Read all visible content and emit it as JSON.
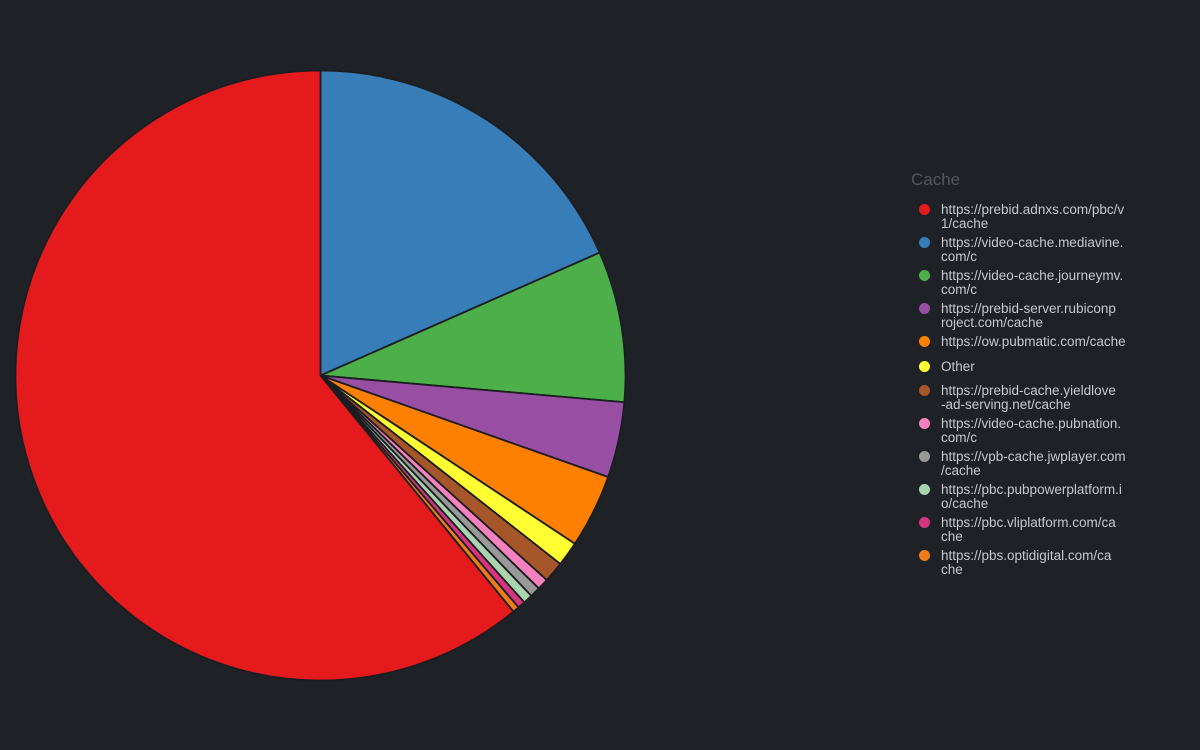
{
  "page": {
    "background_color": "#1e2126"
  },
  "chart_data": {
    "type": "pie",
    "title": "",
    "legend_title": "Cache",
    "legend_position": "right",
    "value_labels_shown_on_slices": false,
    "values_unit": "percent (estimated from slice angles; no numbers rendered on chart)",
    "arrangement": "largest slice starts at 12 o'clock filling counterclockwise; remaining slices run clockwise from 12 o'clock in legend order",
    "slice_border_color": "#1b1d21",
    "series": [
      {
        "label": "https://prebid.adnxs.com/pbc/v1/cache",
        "display": "https://prebid.adnxs.com/pbc/v\n1/cache",
        "value_pct": 60.9,
        "color": "#e41a1c"
      },
      {
        "label": "https://video-cache.mediavine.com/c",
        "display": "https://video-cache.mediavine.\ncom/c",
        "value_pct": 18.4,
        "color": "#377eb8"
      },
      {
        "label": "https://video-cache.journeymv.com/c",
        "display": "https://video-cache.journeymv.\ncom/c",
        "value_pct": 8.0,
        "color": "#4daf4a"
      },
      {
        "label": "https://prebid-server.rubiconproject.com/cache",
        "display": "https://prebid-server.rubiconp\nroject.com/cache",
        "value_pct": 4.0,
        "color": "#984ea3"
      },
      {
        "label": "https://ow.pubmatic.com/cache",
        "display": "https://ow.pubmatic.com/cache",
        "value_pct": 3.9,
        "color": "#ff7f00"
      },
      {
        "label": "Other",
        "display": "Other",
        "value_pct": 1.3,
        "color": "#ffff33"
      },
      {
        "label": "https://prebid-cache.yieldlove-ad-serving.net/cache",
        "display": "https://prebid-cache.yieldlove\n-ad-serving.net/cache",
        "value_pct": 1.1,
        "color": "#a65628"
      },
      {
        "label": "https://video-cache.pubnation.com/c",
        "display": "https://video-cache.pubnation.\ncom/c",
        "value_pct": 0.6,
        "color": "#f781bf"
      },
      {
        "label": "https://vpb-cache.jwplayer.com/cache",
        "display": "https://vpb-cache.jwplayer.com\n/cache",
        "value_pct": 0.55,
        "color": "#999999"
      },
      {
        "label": "https://pbc.pubpowerplatform.io/cache",
        "display": "https://pbc.pubpowerplatform.i\no/cache",
        "value_pct": 0.5,
        "color": "#aad4b0"
      },
      {
        "label": "https://pbc.vliplatform.com/cache",
        "display": "https://pbc.vliplatform.com/ca\nche",
        "value_pct": 0.4,
        "color": "#d6367f"
      },
      {
        "label": "https://pbs.optidigital.com/cache",
        "display": "https://pbs.optidigital.com/ca\nche",
        "value_pct": 0.35,
        "color": "#ee7d18"
      }
    ]
  }
}
